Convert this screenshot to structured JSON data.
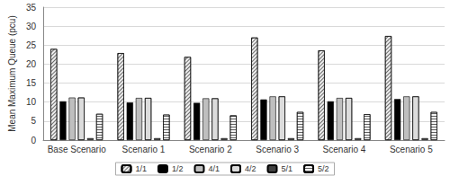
{
  "chart_data": {
    "type": "bar",
    "y_label": "Mean Maximum Queue (pcu)",
    "categories": [
      "Base Scenario",
      "Scenario 1",
      "Scenario 2",
      "Scenario 3",
      "Scenario 4",
      "Scenario 5"
    ],
    "series": [
      {
        "name": "1/1",
        "color": "#eeeeee",
        "values": [
          24.0,
          22.9,
          21.9,
          27.0,
          23.6,
          27.4
        ]
      },
      {
        "name": "1/2",
        "color": "#000000",
        "values": [
          10.2,
          9.9,
          9.8,
          10.7,
          10.2,
          10.8
        ]
      },
      {
        "name": "4/1",
        "color": "#bfbfbf",
        "values": [
          11.2,
          11.1,
          11.0,
          11.5,
          11.1,
          11.5
        ]
      },
      {
        "name": "4/2",
        "color": "#dcdcdc",
        "values": [
          11.2,
          11.1,
          11.0,
          11.5,
          11.1,
          11.5
        ]
      },
      {
        "name": "5/1",
        "color": "#404040",
        "values": [
          0.5,
          0.5,
          0.5,
          0.5,
          0.5,
          0.5
        ]
      },
      {
        "name": "5/2",
        "color": "#f4f4f4",
        "values": [
          6.9,
          6.7,
          6.5,
          7.4,
          6.8,
          7.4
        ]
      }
    ],
    "ylim": [
      0,
      35
    ],
    "yticks": [
      0,
      5,
      10,
      15,
      20,
      25,
      30,
      35
    ],
    "grid": true,
    "legend": "bottom"
  }
}
